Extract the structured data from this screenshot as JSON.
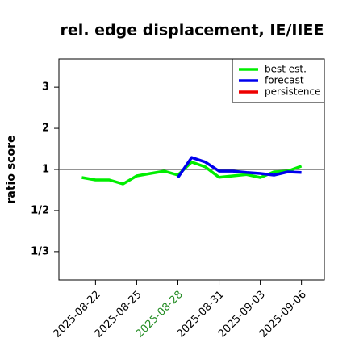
{
  "chart_data": {
    "type": "line",
    "title": "rel. edge displacement, IE/IIEE",
    "ylabel": "ratio score",
    "yscale": "ratio-score",
    "x": [
      "2025-08-21",
      "2025-08-22",
      "2025-08-23",
      "2025-08-24",
      "2025-08-25",
      "2025-08-26",
      "2025-08-27",
      "2025-08-28",
      "2025-08-29",
      "2025-08-30",
      "2025-08-31",
      "2025-09-01",
      "2025-09-02",
      "2025-09-03",
      "2025-09-04",
      "2025-09-05",
      "2025-09-06"
    ],
    "xlim": [
      "2025-08-19T08:00",
      "2025-09-07T16:00"
    ],
    "xticks": [
      "2025-08-22",
      "2025-08-25",
      "2025-08-28",
      "2025-08-31",
      "2025-09-03",
      "2025-09-06"
    ],
    "highlight_xtick": "2025-08-28",
    "highlight_color": "#228b22",
    "ylim": [
      0.271,
      3.69
    ],
    "yticks": [
      3,
      2,
      1,
      {
        "value": 0.5,
        "label": "1/2"
      },
      {
        "value": 0.3333,
        "label": "1/3"
      }
    ],
    "hline": 1,
    "legend": "upper right",
    "series": [
      {
        "name": "best est.",
        "color": "#00ee00",
        "values": [
          0.836,
          0.797,
          0.797,
          0.739,
          0.864,
          0.911,
          0.96,
          0.879,
          1.18,
          1.06,
          0.84,
          0.864,
          0.89,
          0.836,
          0.945,
          0.96,
          1.08
        ]
      },
      {
        "name": "forecast",
        "color": "#0000ee",
        "values": [
          null,
          null,
          null,
          null,
          null,
          null,
          null,
          0.836,
          1.29,
          1.18,
          0.96,
          0.96,
          0.93,
          0.91,
          0.879,
          0.945,
          0.93
        ]
      },
      {
        "name": "persistence",
        "color": "#ee0000",
        "values": [
          null,
          null,
          null,
          null,
          null,
          null,
          null,
          null,
          null,
          null,
          null,
          null,
          null,
          null,
          null,
          null,
          null
        ]
      }
    ]
  }
}
